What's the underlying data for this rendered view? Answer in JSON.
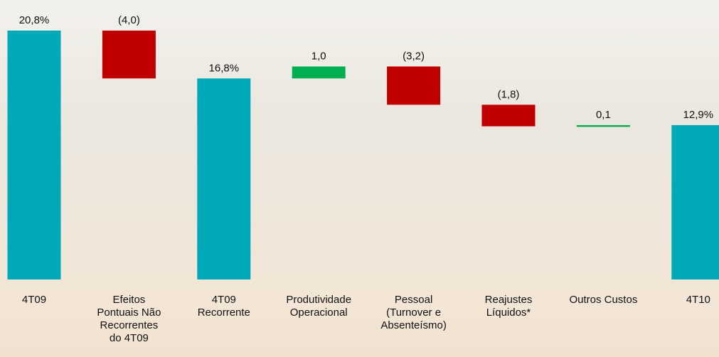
{
  "chart_data": {
    "type": "waterfall",
    "categories": [
      "4T09",
      "Efeitos Pontuais Não Recorrentes do 4T09",
      "4T09 Recorrente",
      "Produtividade Operacional",
      "Pessoal (Turnover e Absenteísmo)",
      "Reajustes Líquidos*",
      "Outros Custos",
      "4T10"
    ],
    "values": [
      20.8,
      -4.0,
      16.8,
      1.0,
      -3.2,
      -1.8,
      0.1,
      12.9
    ],
    "value_labels": [
      "20,8%",
      "(4,0)",
      "16,8%",
      "1,0",
      "(3,2)",
      "(1,8)",
      "0,1",
      "12,9%"
    ],
    "is_total": [
      true,
      false,
      true,
      false,
      false,
      false,
      false,
      true
    ],
    "colors": {
      "total": "#00a9b8",
      "increase": "#00b050",
      "decrease": "#c00000"
    }
  }
}
